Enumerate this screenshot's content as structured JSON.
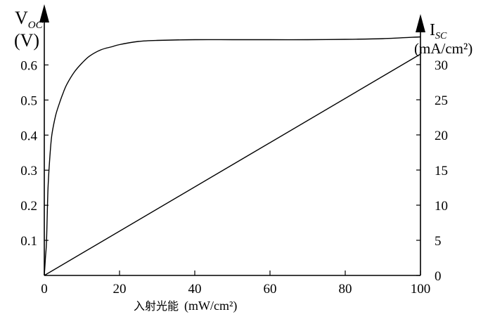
{
  "chart_data": {
    "type": "line",
    "xlabel": "入射光能",
    "xlabel_unit": "(mW/cm²)",
    "ylabel_left": {
      "symbol": "V",
      "subscript": "OC",
      "unit": "(V)"
    },
    "ylabel_right": {
      "symbol": "I",
      "subscript": "SC",
      "unit": "(mA/cm²)"
    },
    "xlim": [
      0,
      100
    ],
    "ylim_left": [
      0,
      0.7
    ],
    "ylim_right": [
      0,
      30
    ],
    "x_ticks": [
      "0",
      "20",
      "40",
      "60",
      "80",
      "100"
    ],
    "y_left_ticks": [
      "0.1",
      "0.2",
      "0.3",
      "0.4",
      "0.5",
      "0.6"
    ],
    "y_right_ticks": [
      "0",
      "5",
      "10",
      "15",
      "20",
      "25",
      "30"
    ],
    "grid": false,
    "series": [
      {
        "axis": "left",
        "x": [
          0,
          0.3,
          0.6,
          1,
          1.5,
          2,
          3,
          4,
          5,
          6,
          8,
          10,
          12,
          15,
          18,
          20,
          25,
          30,
          40,
          50,
          60,
          70,
          80,
          90,
          100
        ],
        "values": [
          0,
          0.05,
          0.1,
          0.25,
          0.34,
          0.4,
          0.455,
          0.49,
          0.52,
          0.545,
          0.58,
          0.605,
          0.625,
          0.643,
          0.652,
          0.658,
          0.667,
          0.67,
          0.672,
          0.672,
          0.672,
          0.672,
          0.673,
          0.675,
          0.68
        ]
      },
      {
        "axis": "right",
        "x": [
          0,
          100
        ],
        "values": [
          0,
          31.5
        ]
      }
    ]
  }
}
